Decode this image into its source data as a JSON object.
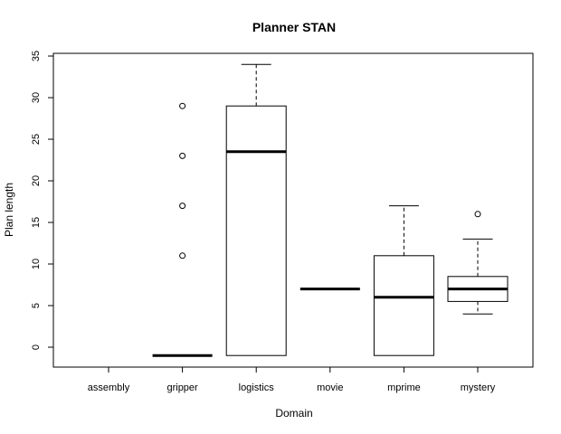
{
  "chart_data": {
    "type": "boxplot",
    "title": "Planner STAN",
    "xlabel": "Domain",
    "ylabel": "Plan length",
    "ylim": [
      -2.5,
      35.5
    ],
    "yticks": [
      0,
      5,
      10,
      15,
      20,
      25,
      30,
      35
    ],
    "ytick_labels": [
      "0",
      "5",
      "10",
      "15",
      "20",
      "25",
      "30",
      "35"
    ],
    "categories": [
      "assembly",
      "gripper",
      "logistics",
      "movie",
      "mprime",
      "mystery"
    ],
    "grid": false,
    "boxes": [
      {
        "category": "assembly",
        "empty": true
      },
      {
        "category": "gripper",
        "whisker_low": -1,
        "q1": -1,
        "median": -1,
        "q3": -1,
        "whisker_high": -1,
        "outliers": [
          11,
          17,
          23,
          29
        ]
      },
      {
        "category": "logistics",
        "whisker_low": -1,
        "q1": -1,
        "median": 23.5,
        "q3": 29,
        "whisker_high": 34,
        "outliers": []
      },
      {
        "category": "movie",
        "whisker_low": 7,
        "q1": 7,
        "median": 7,
        "q3": 7,
        "whisker_high": 7,
        "outliers": []
      },
      {
        "category": "mprime",
        "whisker_low": -1,
        "q1": -1,
        "median": 6,
        "q3": 11,
        "whisker_high": 17,
        "outliers": []
      },
      {
        "category": "mystery",
        "whisker_low": 4,
        "q1": 5.5,
        "median": 7,
        "q3": 8.5,
        "whisker_high": 13,
        "outliers": [
          16
        ]
      }
    ]
  }
}
